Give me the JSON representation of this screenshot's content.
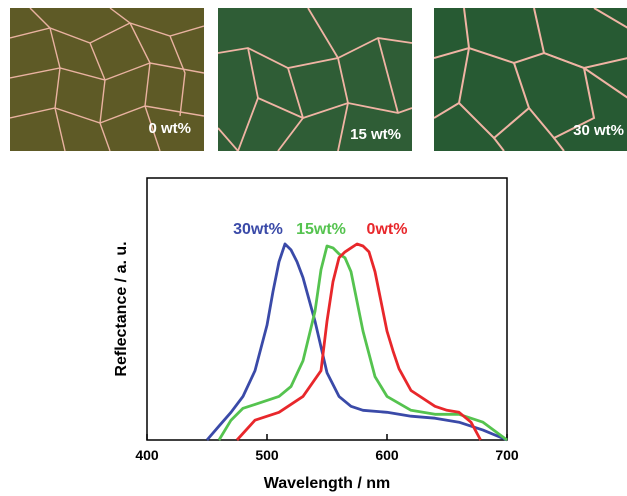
{
  "micrographs": [
    {
      "label": "0 wt%",
      "tone": "#5e5a26",
      "boundary": "#e9b2a0"
    },
    {
      "label": "15 wt%",
      "tone": "#2f5d36",
      "boundary": "#f0b4a4"
    },
    {
      "label": "30 wt%",
      "tone": "#275a33",
      "boundary": "#f0b4a4"
    }
  ],
  "colors": {
    "c30": "#3a4aa8",
    "c15": "#55c34f",
    "c0": "#e8272b"
  },
  "chart_data": {
    "type": "line",
    "title": "",
    "xlabel": "Wavelength / nm",
    "ylabel": "Reflectance / a. u.",
    "xlim": [
      400,
      700
    ],
    "ylim": [
      0,
      1
    ],
    "xticks": [
      400,
      500,
      600,
      700
    ],
    "yticks_shown": false,
    "legend": "inline labels above peaks",
    "series": [
      {
        "name": "30wt%",
        "color": "#3a4aa8",
        "x": [
          450,
          460,
          470,
          480,
          490,
          500,
          505,
          510,
          515,
          520,
          525,
          530,
          540,
          550,
          560,
          570,
          580,
          600,
          620,
          640,
          660,
          680,
          700
        ],
        "y": [
          0.0,
          0.07,
          0.14,
          0.22,
          0.35,
          0.58,
          0.75,
          0.9,
          0.99,
          0.96,
          0.9,
          0.82,
          0.6,
          0.34,
          0.22,
          0.17,
          0.15,
          0.14,
          0.12,
          0.11,
          0.09,
          0.05,
          0.0
        ]
      },
      {
        "name": "15wt%",
        "color": "#55c34f",
        "x": [
          460,
          470,
          480,
          490,
          500,
          510,
          520,
          530,
          540,
          545,
          550,
          555,
          560,
          565,
          570,
          580,
          590,
          600,
          620,
          640,
          660,
          680,
          700
        ],
        "y": [
          0.0,
          0.1,
          0.16,
          0.18,
          0.2,
          0.22,
          0.27,
          0.4,
          0.65,
          0.86,
          0.98,
          0.97,
          0.94,
          0.92,
          0.85,
          0.55,
          0.32,
          0.22,
          0.15,
          0.13,
          0.13,
          0.09,
          0.0
        ]
      },
      {
        "name": "0wt%",
        "color": "#e8272b",
        "x": [
          475,
          490,
          510,
          530,
          545,
          550,
          555,
          560,
          565,
          570,
          575,
          580,
          585,
          590,
          595,
          600,
          605,
          610,
          620,
          640,
          650,
          660,
          670,
          678
        ],
        "y": [
          0.0,
          0.1,
          0.14,
          0.22,
          0.35,
          0.6,
          0.8,
          0.92,
          0.95,
          0.97,
          0.99,
          0.98,
          0.95,
          0.85,
          0.7,
          0.55,
          0.45,
          0.36,
          0.25,
          0.17,
          0.15,
          0.14,
          0.09,
          0.0
        ]
      }
    ]
  }
}
